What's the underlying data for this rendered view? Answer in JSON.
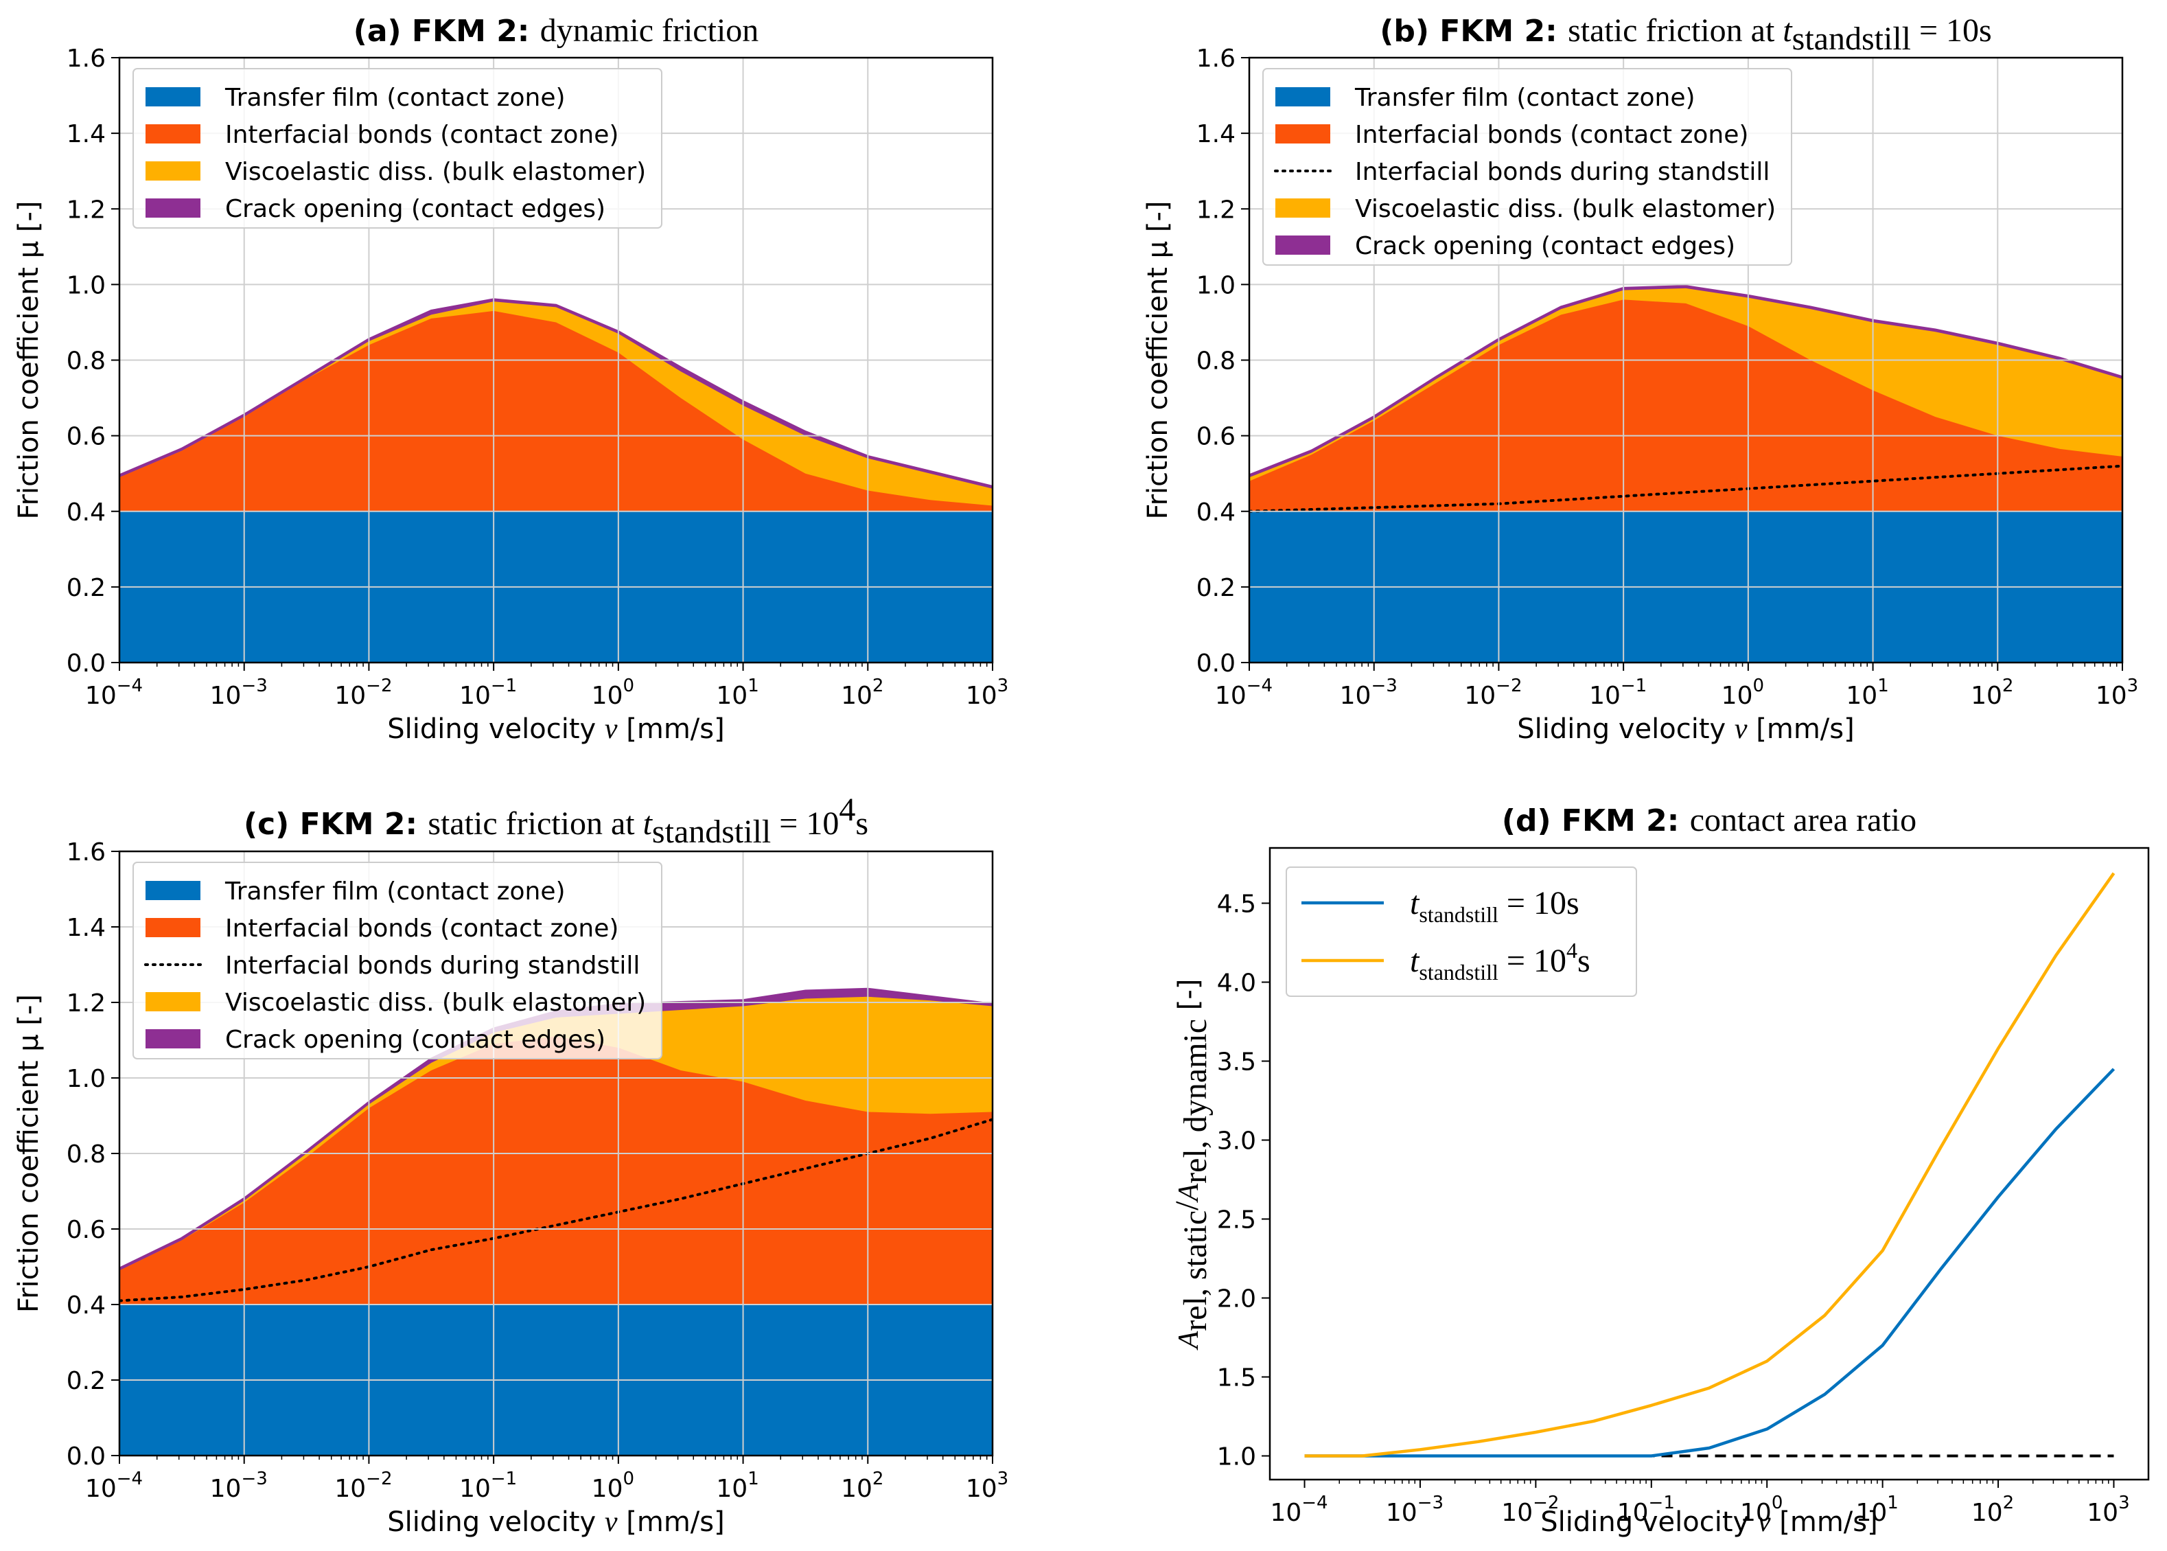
{
  "colors": {
    "transfer": "#0072bd",
    "interfacial": "#fb530a",
    "visco": "#ffb000",
    "crack": "#8e2f93",
    "line_10s": "#0072bd",
    "line_1e4s": "#ffb000"
  },
  "chart_data": [
    {
      "id": "a",
      "type": "area",
      "title_bold": "(a) FKM 2:",
      "title_rest": "dynamic friction",
      "xlabel": "Sliding velocity",
      "xlabel_sym": "v",
      "xlabel_unit": "[mm/s]",
      "ylabel": "Friction coefficient μ [-]",
      "xscale": "log",
      "xlim_log10": [
        -4,
        3
      ],
      "ylim": [
        0,
        1.6
      ],
      "grid": true,
      "legend_position": "upper-left",
      "x_log10": [
        -4,
        -3.5,
        -3,
        -2.5,
        -2,
        -1.5,
        -1,
        -0.5,
        0,
        0.5,
        1,
        1.5,
        2,
        2.5,
        3
      ],
      "series": [
        {
          "name": "Transfer film (contact zone)",
          "key": "transfer",
          "values": [
            0.4,
            0.4,
            0.4,
            0.4,
            0.4,
            0.4,
            0.4,
            0.4,
            0.4,
            0.4,
            0.4,
            0.4,
            0.4,
            0.4,
            0.4
          ]
        },
        {
          "name": "Interfacial bonds (contact zone)",
          "key": "interfacial",
          "values": [
            0.49,
            0.56,
            0.65,
            0.75,
            0.84,
            0.91,
            0.93,
            0.9,
            0.82,
            0.7,
            0.59,
            0.5,
            0.455,
            0.43,
            0.415
          ]
        },
        {
          "name": "Viscoelastic diss. (bulk elastomer)",
          "key": "visco",
          "values": [
            0.49,
            0.56,
            0.65,
            0.75,
            0.85,
            0.92,
            0.955,
            0.94,
            0.87,
            0.77,
            0.68,
            0.6,
            0.54,
            0.5,
            0.46
          ]
        },
        {
          "name": "Crack opening (contact edges)",
          "key": "crack",
          "values": [
            0.495,
            0.565,
            0.655,
            0.755,
            0.855,
            0.93,
            0.96,
            0.945,
            0.875,
            0.78,
            0.69,
            0.61,
            0.545,
            0.505,
            0.465
          ]
        }
      ],
      "tick_labels_x": [
        "10",
        "10",
        "10",
        "10",
        "10",
        "10",
        "10",
        "10"
      ],
      "tick_exps_x": [
        "−4",
        "−3",
        "−2",
        "−1",
        "0",
        "1",
        "2",
        "3"
      ],
      "tick_labels_y": [
        "0.0",
        "0.2",
        "0.4",
        "0.6",
        "0.8",
        "1.0",
        "1.2",
        "1.4",
        "1.6"
      ]
    },
    {
      "id": "b",
      "type": "area",
      "title_bold": "(b) FKM 2:",
      "title_rest": "static friction at",
      "title_sym": "t",
      "title_sub": "standstill",
      "title_eq": "= 10s",
      "xlabel": "Sliding velocity",
      "xlabel_sym": "v",
      "xlabel_unit": "[mm/s]",
      "ylabel": "Friction coefficient μ [-]",
      "xscale": "log",
      "xlim_log10": [
        -4,
        3
      ],
      "ylim": [
        0,
        1.6
      ],
      "grid": true,
      "legend_position": "upper-left",
      "x_log10": [
        -4,
        -3.5,
        -3,
        -2.5,
        -2,
        -1.5,
        -1,
        -0.5,
        0,
        0.5,
        1,
        1.5,
        2,
        2.5,
        3
      ],
      "series": [
        {
          "name": "Transfer film (contact zone)",
          "key": "transfer",
          "values": [
            0.4,
            0.4,
            0.4,
            0.4,
            0.4,
            0.4,
            0.4,
            0.4,
            0.4,
            0.4,
            0.4,
            0.4,
            0.4,
            0.4,
            0.4
          ]
        },
        {
          "name": "Interfacial bonds (contact zone)",
          "key": "interfacial",
          "values": [
            0.48,
            0.55,
            0.64,
            0.74,
            0.84,
            0.92,
            0.96,
            0.95,
            0.89,
            0.8,
            0.72,
            0.65,
            0.6,
            0.565,
            0.545
          ]
        },
        {
          "name": "Viscoelastic diss. (bulk elastomer)",
          "key": "visco",
          "values": [
            0.49,
            0.555,
            0.645,
            0.75,
            0.85,
            0.935,
            0.985,
            0.99,
            0.965,
            0.935,
            0.9,
            0.875,
            0.84,
            0.8,
            0.75
          ]
        },
        {
          "name": "Crack opening (contact edges)",
          "key": "crack",
          "values": [
            0.495,
            0.56,
            0.65,
            0.755,
            0.855,
            0.94,
            0.99,
            0.995,
            0.97,
            0.94,
            0.905,
            0.88,
            0.845,
            0.805,
            0.755
          ]
        }
      ],
      "dotted": {
        "name": "Interfacial bonds during standstill",
        "values": [
          0.4,
          0.405,
          0.41,
          0.415,
          0.42,
          0.43,
          0.44,
          0.45,
          0.46,
          0.47,
          0.48,
          0.49,
          0.5,
          0.51,
          0.52
        ]
      },
      "tick_labels_x": [
        "10",
        "10",
        "10",
        "10",
        "10",
        "10",
        "10",
        "10"
      ],
      "tick_exps_x": [
        "−4",
        "−3",
        "−2",
        "−1",
        "0",
        "1",
        "2",
        "3"
      ],
      "tick_labels_y": [
        "0.0",
        "0.2",
        "0.4",
        "0.6",
        "0.8",
        "1.0",
        "1.2",
        "1.4",
        "1.6"
      ]
    },
    {
      "id": "c",
      "type": "area",
      "title_bold": "(c) FKM 2:",
      "title_rest": "static friction at",
      "title_sym": "t",
      "title_sub": "standstill",
      "title_eq": "= 10",
      "title_sup": "4",
      "title_end": "s",
      "xlabel": "Sliding velocity",
      "xlabel_sym": "v",
      "xlabel_unit": "[mm/s]",
      "ylabel": "Friction coefficient μ [-]",
      "xscale": "log",
      "xlim_log10": [
        -4,
        3
      ],
      "ylim": [
        0,
        1.6
      ],
      "grid": true,
      "legend_position": "upper-left",
      "x_log10": [
        -4,
        -3.5,
        -3,
        -2.5,
        -2,
        -1.5,
        -1,
        -0.5,
        0,
        0.5,
        1,
        1.5,
        2,
        2.5,
        3
      ],
      "series": [
        {
          "name": "Transfer film (contact zone)",
          "key": "transfer",
          "values": [
            0.4,
            0.4,
            0.4,
            0.4,
            0.4,
            0.4,
            0.4,
            0.4,
            0.4,
            0.4,
            0.4,
            0.4,
            0.4,
            0.4,
            0.4
          ]
        },
        {
          "name": "Interfacial bonds (contact zone)",
          "key": "interfacial",
          "values": [
            0.49,
            0.57,
            0.67,
            0.79,
            0.92,
            1.02,
            1.09,
            1.11,
            1.08,
            1.02,
            0.99,
            0.94,
            0.91,
            0.905,
            0.91
          ]
        },
        {
          "name": "Viscoelastic diss. (bulk elastomer)",
          "key": "visco",
          "values": [
            0.49,
            0.57,
            0.675,
            0.8,
            0.93,
            1.04,
            1.12,
            1.16,
            1.17,
            1.18,
            1.19,
            1.21,
            1.215,
            1.205,
            1.19
          ]
        },
        {
          "name": "Crack opening (contact edges)",
          "key": "crack",
          "values": [
            0.495,
            0.575,
            0.68,
            0.805,
            0.935,
            1.05,
            1.13,
            1.175,
            1.195,
            1.2,
            1.205,
            1.23,
            1.235,
            1.215,
            1.195
          ]
        }
      ],
      "dotted": {
        "name": "Interfacial bonds during standstill",
        "values": [
          0.41,
          0.42,
          0.44,
          0.465,
          0.5,
          0.545,
          0.575,
          0.61,
          0.645,
          0.68,
          0.72,
          0.76,
          0.8,
          0.84,
          0.89
        ]
      },
      "tick_labels_x": [
        "10",
        "10",
        "10",
        "10",
        "10",
        "10",
        "10",
        "10"
      ],
      "tick_exps_x": [
        "−4",
        "−3",
        "−2",
        "−1",
        "0",
        "1",
        "2",
        "3"
      ],
      "tick_labels_y": [
        "0.0",
        "0.2",
        "0.4",
        "0.6",
        "0.8",
        "1.0",
        "1.2",
        "1.4",
        "1.6"
      ]
    },
    {
      "id": "d",
      "type": "line",
      "title_bold": "(d) FKM 2:",
      "title_rest": "contact area ratio",
      "xlabel": "Sliding velocity",
      "xlabel_sym": "v",
      "xlabel_unit": "[mm/s]",
      "ylabel_main": "A",
      "ylabel_sub1": "rel, static",
      "ylabel_slash": "/A",
      "ylabel_sub2": "rel, dynamic",
      "ylabel_unit": "[-]",
      "xscale": "log",
      "xlim_log10": [
        -4.3,
        3.3
      ],
      "ylim": [
        0.85,
        4.85
      ],
      "grid": false,
      "legend_position": "upper-left",
      "x_log10": [
        -4,
        -3.5,
        -3,
        -2.5,
        -2,
        -1.5,
        -1,
        -0.5,
        0,
        0.5,
        1,
        1.5,
        2,
        2.5,
        3
      ],
      "series": [
        {
          "name_sym": "t",
          "name_sub": "standstill",
          "name_eq": "= 10s",
          "key": "line_10s",
          "values": [
            1.0,
            1.0,
            1.0,
            1.0,
            1.0,
            1.0,
            1.0,
            1.05,
            1.17,
            1.39,
            1.7,
            2.18,
            2.64,
            3.07,
            3.45
          ]
        },
        {
          "name_sym": "t",
          "name_sub": "standstill",
          "name_eq": "= 10",
          "name_sup": "4",
          "name_end": "s",
          "key": "line_1e4s",
          "values": [
            1.0,
            1.0,
            1.04,
            1.09,
            1.15,
            1.22,
            1.32,
            1.43,
            1.6,
            1.89,
            2.3,
            2.95,
            3.58,
            4.17,
            4.69
          ]
        }
      ],
      "reference": {
        "style": "dashed",
        "value": 1.0
      },
      "tick_labels_x": [
        "10",
        "10",
        "10",
        "10",
        "10",
        "10",
        "10",
        "10"
      ],
      "tick_exps_x": [
        "−4",
        "−3",
        "−2",
        "−1",
        "0",
        "1",
        "2",
        "3"
      ],
      "tick_values_y": [
        1.0,
        1.5,
        2.0,
        2.5,
        3.0,
        3.5,
        4.0,
        4.5
      ],
      "tick_labels_y": [
        "1.0",
        "1.5",
        "2.0",
        "2.5",
        "3.0",
        "3.5",
        "4.0",
        "4.5"
      ]
    }
  ]
}
